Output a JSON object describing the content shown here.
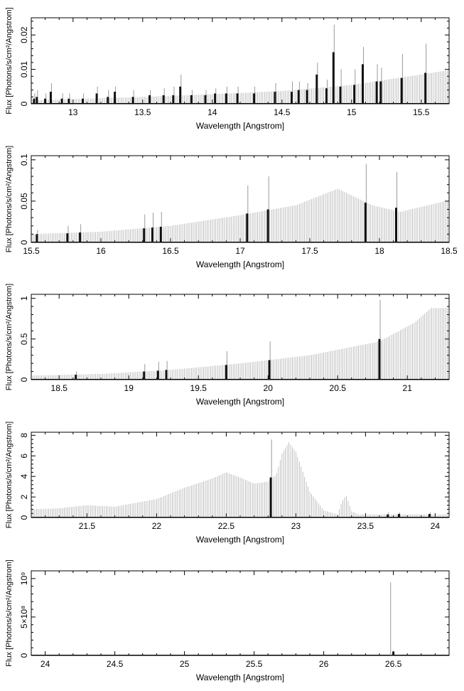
{
  "chart_data": [
    {
      "type": "bar",
      "xlabel": "Wavelength [Angstrom]",
      "ylabel": "Flux [Photons/s/cm²/Angstrom]",
      "xlim": [
        12.7,
        15.7
      ],
      "ylim": [
        0,
        0.025
      ],
      "xticks": [
        13,
        13.5,
        14,
        14.5,
        15,
        15.5
      ],
      "xtick_labels": [
        "13",
        "13.5",
        "14",
        "14.5",
        "15",
        "15.5"
      ],
      "yticks": [
        0,
        0.01,
        0.02
      ],
      "ytick_labels": [
        "0",
        "0.01",
        "0.02"
      ],
      "continuum": {
        "x": [
          12.7,
          13.5,
          14.0,
          14.5,
          15.0,
          15.5,
          15.7
        ],
        "y": [
          0.001,
          0.002,
          0.0028,
          0.0037,
          0.0055,
          0.0085,
          0.0098
        ]
      },
      "lines": [
        {
          "x": 12.72,
          "flux": 0.0015,
          "upper": 0.003
        },
        {
          "x": 12.74,
          "flux": 0.002,
          "upper": 0.004
        },
        {
          "x": 12.8,
          "flux": 0.0015,
          "upper": 0.003
        },
        {
          "x": 12.84,
          "flux": 0.0035,
          "upper": 0.006
        },
        {
          "x": 12.92,
          "flux": 0.0015,
          "upper": 0.003
        },
        {
          "x": 12.97,
          "flux": 0.0015,
          "upper": 0.003
        },
        {
          "x": 13.07,
          "flux": 0.0015,
          "upper": 0.003
        },
        {
          "x": 13.17,
          "flux": 0.003,
          "upper": 0.005
        },
        {
          "x": 13.25,
          "flux": 0.002,
          "upper": 0.004
        },
        {
          "x": 13.3,
          "flux": 0.0035,
          "upper": 0.005
        },
        {
          "x": 13.43,
          "flux": 0.002,
          "upper": 0.004
        },
        {
          "x": 13.55,
          "flux": 0.0025,
          "upper": 0.004
        },
        {
          "x": 13.65,
          "flux": 0.0025,
          "upper": 0.0045
        },
        {
          "x": 13.72,
          "flux": 0.0025,
          "upper": 0.005
        },
        {
          "x": 13.77,
          "flux": 0.005,
          "upper": 0.0085
        },
        {
          "x": 13.85,
          "flux": 0.0025,
          "upper": 0.004
        },
        {
          "x": 13.95,
          "flux": 0.0025,
          "upper": 0.004
        },
        {
          "x": 14.02,
          "flux": 0.003,
          "upper": 0.0045
        },
        {
          "x": 14.1,
          "flux": 0.003,
          "upper": 0.005
        },
        {
          "x": 14.18,
          "flux": 0.003,
          "upper": 0.005
        },
        {
          "x": 14.3,
          "flux": 0.003,
          "upper": 0.005
        },
        {
          "x": 14.45,
          "flux": 0.0035,
          "upper": 0.006
        },
        {
          "x": 14.57,
          "flux": 0.0035,
          "upper": 0.0065
        },
        {
          "x": 14.62,
          "flux": 0.004,
          "upper": 0.0065
        },
        {
          "x": 14.68,
          "flux": 0.004,
          "upper": 0.006
        },
        {
          "x": 14.75,
          "flux": 0.0085,
          "upper": 0.012
        },
        {
          "x": 14.82,
          "flux": 0.0045,
          "upper": 0.007
        },
        {
          "x": 14.87,
          "flux": 0.015,
          "upper": 0.023
        },
        {
          "x": 14.92,
          "flux": 0.005,
          "upper": 0.01
        },
        {
          "x": 15.02,
          "flux": 0.0055,
          "upper": 0.01
        },
        {
          "x": 15.08,
          "flux": 0.0115,
          "upper": 0.0165
        },
        {
          "x": 15.18,
          "flux": 0.0065,
          "upper": 0.0115
        },
        {
          "x": 15.21,
          "flux": 0.0065,
          "upper": 0.0105
        },
        {
          "x": 15.36,
          "flux": 0.0075,
          "upper": 0.0145
        },
        {
          "x": 15.53,
          "flux": 0.009,
          "upper": 0.0175
        }
      ]
    },
    {
      "type": "bar",
      "xlabel": "Wavelength [Angstrom]",
      "ylabel": "Flux [Photons/s/cm²/Angstrom]",
      "xlim": [
        15.5,
        18.5
      ],
      "ylim": [
        0,
        0.105
      ],
      "xticks": [
        15.5,
        16,
        16.5,
        17,
        17.5,
        18,
        18.5
      ],
      "xtick_labels": [
        "15.5",
        "16",
        "16.5",
        "17",
        "17.5",
        "18",
        "18.5"
      ],
      "yticks": [
        0,
        0.05,
        0.1
      ],
      "ytick_labels": [
        "0",
        "0.05",
        "0.1"
      ],
      "continuum": {
        "x": [
          15.5,
          16.0,
          16.5,
          17.0,
          17.4,
          17.7,
          17.95,
          18.15,
          18.5
        ],
        "y": [
          0.01,
          0.013,
          0.02,
          0.033,
          0.045,
          0.065,
          0.045,
          0.037,
          0.051
        ]
      },
      "lines": [
        {
          "x": 15.54,
          "flux": 0.01,
          "upper": 0.015
        },
        {
          "x": 15.76,
          "flux": 0.011,
          "upper": 0.02
        },
        {
          "x": 15.85,
          "flux": 0.012,
          "upper": 0.022
        },
        {
          "x": 16.31,
          "flux": 0.017,
          "upper": 0.034
        },
        {
          "x": 16.37,
          "flux": 0.018,
          "upper": 0.036
        },
        {
          "x": 16.43,
          "flux": 0.019,
          "upper": 0.037
        },
        {
          "x": 17.05,
          "flux": 0.035,
          "upper": 0.069
        },
        {
          "x": 17.2,
          "flux": 0.04,
          "upper": 0.08
        },
        {
          "x": 17.9,
          "flux": 0.048,
          "upper": 0.095
        },
        {
          "x": 18.12,
          "flux": 0.042,
          "upper": 0.085
        }
      ]
    },
    {
      "type": "bar",
      "xlabel": "Wavelength [Angstrom]",
      "ylabel": "Flux [Photons/s/cm²/Angstrom]",
      "xlim": [
        18.3,
        21.3
      ],
      "ylim": [
        0,
        1.05
      ],
      "xticks": [
        18.5,
        19,
        19.5,
        20,
        20.5,
        21
      ],
      "xtick_labels": [
        "18.5",
        "19",
        "19.5",
        "20",
        "20.5",
        "21"
      ],
      "yticks": [
        0,
        0.5,
        1
      ],
      "ytick_labels": [
        "0",
        "0.5",
        "1"
      ],
      "continuum": {
        "x": [
          18.3,
          18.8,
          19.3,
          19.8,
          20.3,
          20.8,
          21.05,
          21.17,
          21.3
        ],
        "y": [
          0.05,
          0.07,
          0.12,
          0.2,
          0.3,
          0.47,
          0.7,
          0.88,
          0.88
        ]
      },
      "lines": [
        {
          "x": 18.62,
          "flux": 0.06,
          "upper": 0.1
        },
        {
          "x": 19.11,
          "flux": 0.1,
          "upper": 0.19
        },
        {
          "x": 19.21,
          "flux": 0.11,
          "upper": 0.22
        },
        {
          "x": 19.27,
          "flux": 0.12,
          "upper": 0.23
        },
        {
          "x": 19.7,
          "flux": 0.18,
          "upper": 0.35
        },
        {
          "x": 20.01,
          "flux": 0.24,
          "upper": 0.47
        },
        {
          "x": 20.8,
          "flux": 0.5,
          "upper": 0.98
        }
      ]
    },
    {
      "type": "bar",
      "xlabel": "Wavelength [Angstrom]",
      "ylabel": "Flux [Photons/s/cm²/Angstrom]",
      "xlim": [
        21.1,
        24.1
      ],
      "ylim": [
        0,
        8.3
      ],
      "xticks": [
        21.5,
        22,
        22.5,
        23,
        23.5,
        24
      ],
      "xtick_labels": [
        "21.5",
        "22",
        "22.5",
        "23",
        "23.5",
        "24"
      ],
      "yticks": [
        0,
        2,
        4,
        6,
        8
      ],
      "ytick_labels": [
        "0",
        "2",
        "4",
        "6",
        "8"
      ],
      "continuum": {
        "x": [
          21.1,
          21.3,
          21.5,
          21.7,
          22.0,
          22.2,
          22.4,
          22.5,
          22.6,
          22.7,
          22.8,
          22.86,
          22.9,
          22.95,
          23.0,
          23.1,
          23.2,
          23.3,
          23.33,
          23.36,
          23.4,
          23.45,
          24.1
        ],
        "y": [
          0.8,
          0.9,
          1.2,
          1.05,
          1.8,
          2.9,
          3.8,
          4.4,
          3.9,
          3.3,
          3.5,
          4.2,
          6.2,
          7.3,
          6.4,
          2.5,
          0.7,
          0.3,
          1.5,
          2.2,
          0.6,
          0.3,
          0.3
        ]
      },
      "lines": [
        {
          "x": 22.82,
          "flux": 3.9,
          "upper": 7.6
        },
        {
          "x": 23.66,
          "flux": 0.3,
          "upper": 0.5
        },
        {
          "x": 23.74,
          "flux": 0.35,
          "upper": 0.5
        },
        {
          "x": 23.96,
          "flux": 0.35,
          "upper": 0.5
        }
      ]
    },
    {
      "type": "bar",
      "xlabel": "Wavelength [Angstrom]",
      "ylabel": "Flux [Photons/s/cm²/Angstrom]",
      "xlim": [
        23.9,
        26.9
      ],
      "ylim": [
        0,
        1100000000.0
      ],
      "xticks": [
        24,
        24.5,
        25,
        25.5,
        26,
        26.5
      ],
      "xtick_labels": [
        "24",
        "24.5",
        "25",
        "25.5",
        "26",
        "26.5"
      ],
      "yticks": [
        0,
        500000000.0,
        1000000000.0
      ],
      "ytick_labels": [
        "0",
        "5×10⁸",
        "10⁹"
      ],
      "continuum": {
        "x": [
          23.9,
          26.9
        ],
        "y": [
          0,
          0
        ]
      },
      "spike": {
        "x": 26.48,
        "flux": 950000000.0
      },
      "lines": [
        {
          "x": 26.5,
          "flux": 50000000.0,
          "upper": 50000000.0
        }
      ]
    }
  ]
}
